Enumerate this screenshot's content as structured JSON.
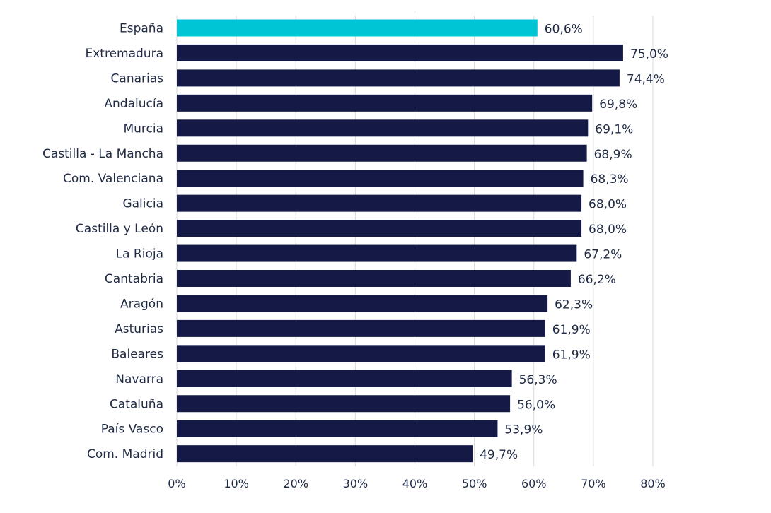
{
  "chart_data": {
    "type": "bar",
    "orientation": "horizontal",
    "categories": [
      "España",
      "Extremadura",
      "Canarias",
      "Andalucía",
      "Murcia",
      "Castilla - La Mancha",
      "Com. Valenciana",
      "Galicia",
      "Castilla y León",
      "La Rioja",
      "Cantabria",
      "Aragón",
      "Asturias",
      "Baleares",
      "Navarra",
      "Cataluña",
      "País Vasco",
      "Com. Madrid"
    ],
    "values": [
      60.6,
      75.0,
      74.4,
      69.8,
      69.1,
      68.9,
      68.3,
      68.0,
      68.0,
      67.2,
      66.2,
      62.3,
      61.9,
      61.9,
      56.3,
      56.0,
      53.9,
      49.7
    ],
    "value_labels": [
      "60,6%",
      "75,0%",
      "74,4%",
      "69,8%",
      "69,1%",
      "68,9%",
      "68,3%",
      "68,0%",
      "68,0%",
      "67,2%",
      "66,2%",
      "62,3%",
      "61,9%",
      "61,9%",
      "56,3%",
      "56,0%",
      "53,9%",
      "49,7%"
    ],
    "xlim": [
      0,
      80
    ],
    "xticks": [
      0,
      10,
      20,
      30,
      40,
      50,
      60,
      70,
      80
    ],
    "xtick_labels": [
      "0%",
      "10%",
      "20%",
      "30%",
      "40%",
      "50%",
      "60%",
      "70%",
      "80%"
    ],
    "title": "",
    "xlabel": "",
    "ylabel": "",
    "grid": "vertical",
    "legend": "none",
    "colors": {
      "highlight": "#00C5D4",
      "bar": "#141A45",
      "grid": "#D9D9D9",
      "text": "#1F2A44"
    },
    "highlight_index": 0
  }
}
